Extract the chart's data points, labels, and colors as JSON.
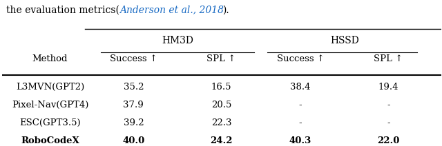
{
  "header_normal1": "the evaluation metrics(",
  "header_link": "Anderson et al., 2018",
  "header_normal2": ").",
  "header_link_color": "#1a6bc4",
  "col_method": 0.11,
  "col_s1": 0.3,
  "col_s2": 0.5,
  "col_s3": 0.68,
  "col_s4": 0.88,
  "subheaders": [
    "Success ↑",
    "SPL ↑",
    "Success ↑",
    "SPL ↑"
  ],
  "row_header": "Method",
  "group_labels": [
    "HM3D",
    "HSSD"
  ],
  "rows": [
    {
      "method": "L3MVN(GPT2)",
      "vals": [
        "35.2",
        "16.5",
        "38.4",
        "19.4"
      ],
      "bold": false
    },
    {
      "method": "Pixel-Nav(GPT4)",
      "vals": [
        "37.9",
        "20.5",
        "-",
        "-"
      ],
      "bold": false
    },
    {
      "method": "ESC(GPT3.5)",
      "vals": [
        "39.2",
        "22.3",
        "-",
        "-"
      ],
      "bold": false
    },
    {
      "method": "RoboCodeX",
      "vals": [
        "40.0",
        "24.2",
        "40.3",
        "22.0"
      ],
      "bold": true
    }
  ],
  "font_size": 9.5,
  "header_font_size": 10.0
}
